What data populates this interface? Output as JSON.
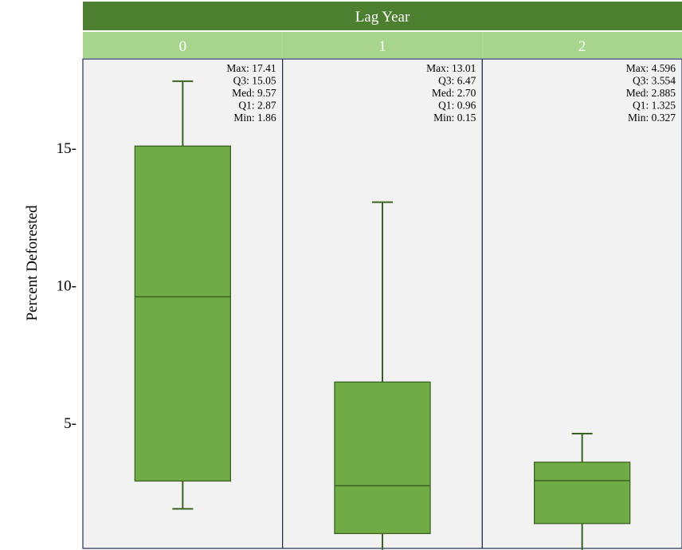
{
  "chart_data": {
    "type": "box",
    "facet_title": "Lag Year",
    "ylabel": "Percent Deforested",
    "yticks": [
      5,
      10,
      15
    ],
    "ytick_suffix": "-",
    "ylim": [
      0,
      17.41
    ],
    "panels": [
      {
        "label": "0",
        "stats_text": [
          "Max: 17.41",
          "Q3: 15.05",
          "Med: 9.57",
          "Q1: 2.87",
          "Min: 1.86"
        ],
        "box": {
          "max": 17.41,
          "q3": 15.05,
          "median": 9.57,
          "q1": 2.87,
          "min": 1.86
        }
      },
      {
        "label": "1",
        "stats_text": [
          "Max: 13.01",
          "Q3: 6.47",
          "Med: 2.70",
          "Q1: 0.96",
          "Min: 0.15"
        ],
        "box": {
          "max": 13.01,
          "q3": 6.47,
          "median": 2.7,
          "q1": 0.96,
          "min": 0.15
        }
      },
      {
        "label": "2",
        "stats_text": [
          "Max: 4.596",
          "Q3: 3.554",
          "Med: 2.885",
          "Q1: 1.325",
          "Min: 0.327"
        ],
        "box": {
          "max": 4.596,
          "q3": 3.554,
          "median": 2.885,
          "q1": 1.325,
          "min": 0.327
        }
      }
    ],
    "colors": {
      "header_dark": "#4d7f30",
      "header_light": "#a8d58d",
      "box_fill": "#70ab45",
      "box_stroke": "#3b6222",
      "panel_bg": "#f2f2f2",
      "panel_border": "#1f2d4f"
    }
  }
}
